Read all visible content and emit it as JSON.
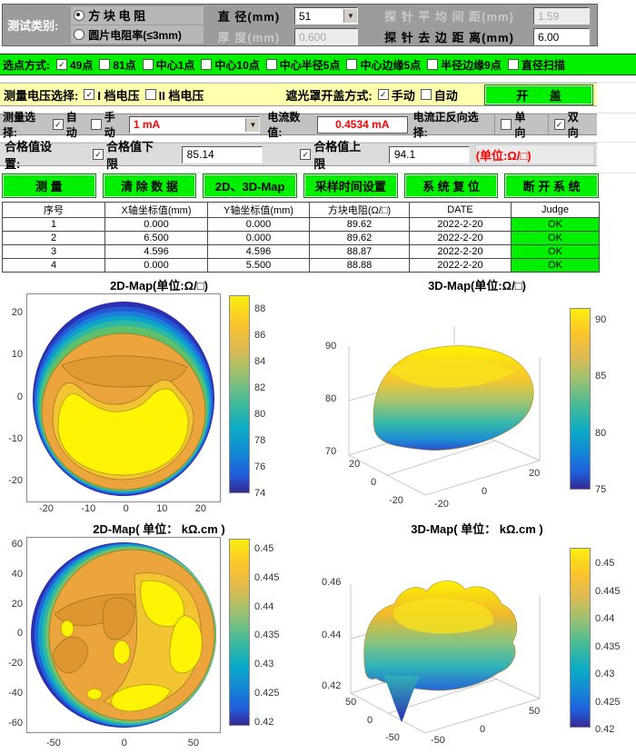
{
  "panel": {
    "test_type": {
      "label": "测试类别:",
      "options": [
        "方 块 电 阻",
        "圆片电阻率(≤3mm)"
      ],
      "selected": 0
    },
    "diameter": {
      "label": "直 径(mm)",
      "value": "51"
    },
    "probe_spacing": {
      "label": "探 针 平 均 间 距(mm)",
      "value": "1.59",
      "disabled": true
    },
    "thickness": {
      "label": "厚 度(mm)",
      "value": "0.600",
      "disabled": true
    },
    "edge_distance": {
      "label": "探 针 去 边 距 离(mm)",
      "value": "6.00"
    },
    "point_mode": {
      "label": "选点方式:",
      "options": [
        "49点",
        "81点",
        "中心1点",
        "中心10点",
        "中心半径5点",
        "中心边缘5点",
        "半径边缘9点",
        "直径扫描"
      ],
      "checked": [
        true,
        false,
        false,
        false,
        false,
        false,
        false,
        false
      ]
    },
    "voltage": {
      "label": "测量电压选择:",
      "options": [
        "I 档电压",
        "II 档电压"
      ],
      "checked": [
        true,
        false
      ]
    },
    "cover": {
      "label": "遮光罩开盖方式:",
      "options": [
        "手动",
        "自动"
      ],
      "checked": [
        true,
        false
      ],
      "button": "开 盖"
    },
    "measure": {
      "label": "测量选择:",
      "options": [
        "自动",
        "手动"
      ],
      "checked": [
        true,
        false
      ],
      "range_value": "1 mA",
      "current_label": "电流数值:",
      "current_value": "0.4534 mA",
      "direction_label": "电流正反向选择:",
      "direction_options": [
        "单 向",
        "双 向"
      ],
      "direction_checked": [
        false,
        true
      ]
    },
    "limits": {
      "label": "合格值设置:",
      "lower_label": "合格值下限",
      "lower_value": "85.14",
      "upper_label": "合格值上限",
      "upper_value": "94.1",
      "unit_note": "(单位:Ω/□)"
    },
    "buttons": [
      "测  量",
      "清 除 数 据",
      "2D、3D-Map",
      "采样时间设置",
      "系 统 复 位",
      "断 开 系 统"
    ]
  },
  "table": {
    "headers": [
      "序号",
      "X轴坐标值(mm)",
      "Y轴坐标值(mm)",
      "方块电阻(Ω/□)",
      "DATE",
      "Judge"
    ],
    "rows": [
      [
        "1",
        "0.000",
        "0.000",
        "89.62",
        "2022-2-20",
        "OK"
      ],
      [
        "2",
        "6.500",
        "0.000",
        "89.62",
        "2022-2-20",
        "OK"
      ],
      [
        "3",
        "4.596",
        "4.596",
        "88.87",
        "2022-2-20",
        "OK"
      ],
      [
        "4",
        "0.000",
        "5.500",
        "88.88",
        "2022-2-20",
        "OK"
      ]
    ]
  },
  "chart_data": [
    {
      "type": "heatmap",
      "title": "2D-Map(单位:Ω/□)",
      "unit": "Ω/□",
      "colormap": "parula",
      "x_range": [
        -25,
        25
      ],
      "y_range": [
        -25,
        25
      ],
      "x_ticks": [
        "-20",
        "-10",
        "0",
        "10",
        "20"
      ],
      "y_ticks": [
        "20",
        "10",
        "0",
        "-10",
        "-20"
      ],
      "colorbar_ticks": [
        "88",
        "86",
        "84",
        "82",
        "80",
        "78",
        "76",
        "74"
      ],
      "value_range": [
        73.5,
        89.6
      ],
      "sample_values": {
        "center": 89.6,
        "mid_radius": 86,
        "top_edge": 74,
        "bottom_edge": 82
      },
      "description": "Circular 51mm wafer sheet-resistance map: yellow maximum ~89 Ω/□ over lower-center, amber band ~86-88 above, contour rings tightening toward top edge where value falls to ~74 Ω/□ (dark blue)."
    },
    {
      "type": "surface",
      "title": "3D-Map(单位:Ω/□)",
      "unit": "Ω/□",
      "colormap": "parula",
      "z_ticks": [
        "90",
        "80",
        "70"
      ],
      "left_axis_ticks": [
        "20",
        "0",
        "-20"
      ],
      "right_axis_ticks": [
        "-20",
        "0",
        "20"
      ],
      "colorbar_ticks": [
        "90",
        "85",
        "80",
        "75"
      ],
      "z_range": [
        70,
        90
      ],
      "sample_values": {
        "plateau_top": 89.6,
        "edge_min": 75
      },
      "description": "Dome-shaped surface: flat yellow plateau ~89-90 Ω/□ on top, sides falling through green/cyan to ~75 Ω/□ at the wafer edge."
    },
    {
      "type": "heatmap",
      "title": "2D-Map( 单位： kΩ.cm )",
      "unit": "kΩ.cm",
      "colormap": "parula",
      "x_range": [
        -65,
        65
      ],
      "y_range": [
        -65,
        65
      ],
      "x_ticks": [
        "-50",
        "0",
        "50"
      ],
      "y_ticks": [
        "60",
        "40",
        "20",
        "0",
        "-20",
        "-40",
        "-60"
      ],
      "colorbar_ticks": [
        "0.45",
        "0.445",
        "0.44",
        "0.435",
        "0.43",
        "0.425",
        "0.42"
      ],
      "value_range": [
        0.418,
        0.452
      ],
      "sample_values": {
        "yellow_patches": 0.45,
        "amber_body": 0.443,
        "left_edge_min": 0.42
      },
      "description": "Irregular resistivity map ~0.44-0.45 kΩ.cm over most of the wafer with yellow patches ~0.45 (upper-right, right, bottom), steep blue gradient down to ~0.42 kΩ.cm along the left edge."
    },
    {
      "type": "surface",
      "title": "3D-Map( 单位： kΩ.cm )",
      "unit": "kΩ.cm",
      "colormap": "parula",
      "z_ticks": [
        "0.46",
        "0.44",
        "0.42"
      ],
      "left_axis_ticks": [
        "50",
        "0",
        "-50"
      ],
      "right_axis_ticks": [
        "-50",
        "0",
        "50"
      ],
      "colorbar_ticks": [
        "0.45",
        "0.445",
        "0.44",
        "0.435",
        "0.43",
        "0.425",
        "0.42"
      ],
      "z_range": [
        0.41,
        0.46
      ],
      "sample_values": {
        "plateau_top": 0.452,
        "funnel_min": 0.412
      },
      "description": "Bumpy plateau ~0.445-0.455 kΩ.cm with wavy yellow ridges and a deep blue funnel dip to ~0.41 kΩ.cm near the front-left edge."
    }
  ],
  "colors": {
    "accent_green": "#00f000",
    "yellow_row": "#ffffae",
    "gray_row": "#c2c2c2",
    "panel_gray": "#9c9c9c",
    "red_text": "#ff0000",
    "judge_green": "#00f000"
  }
}
